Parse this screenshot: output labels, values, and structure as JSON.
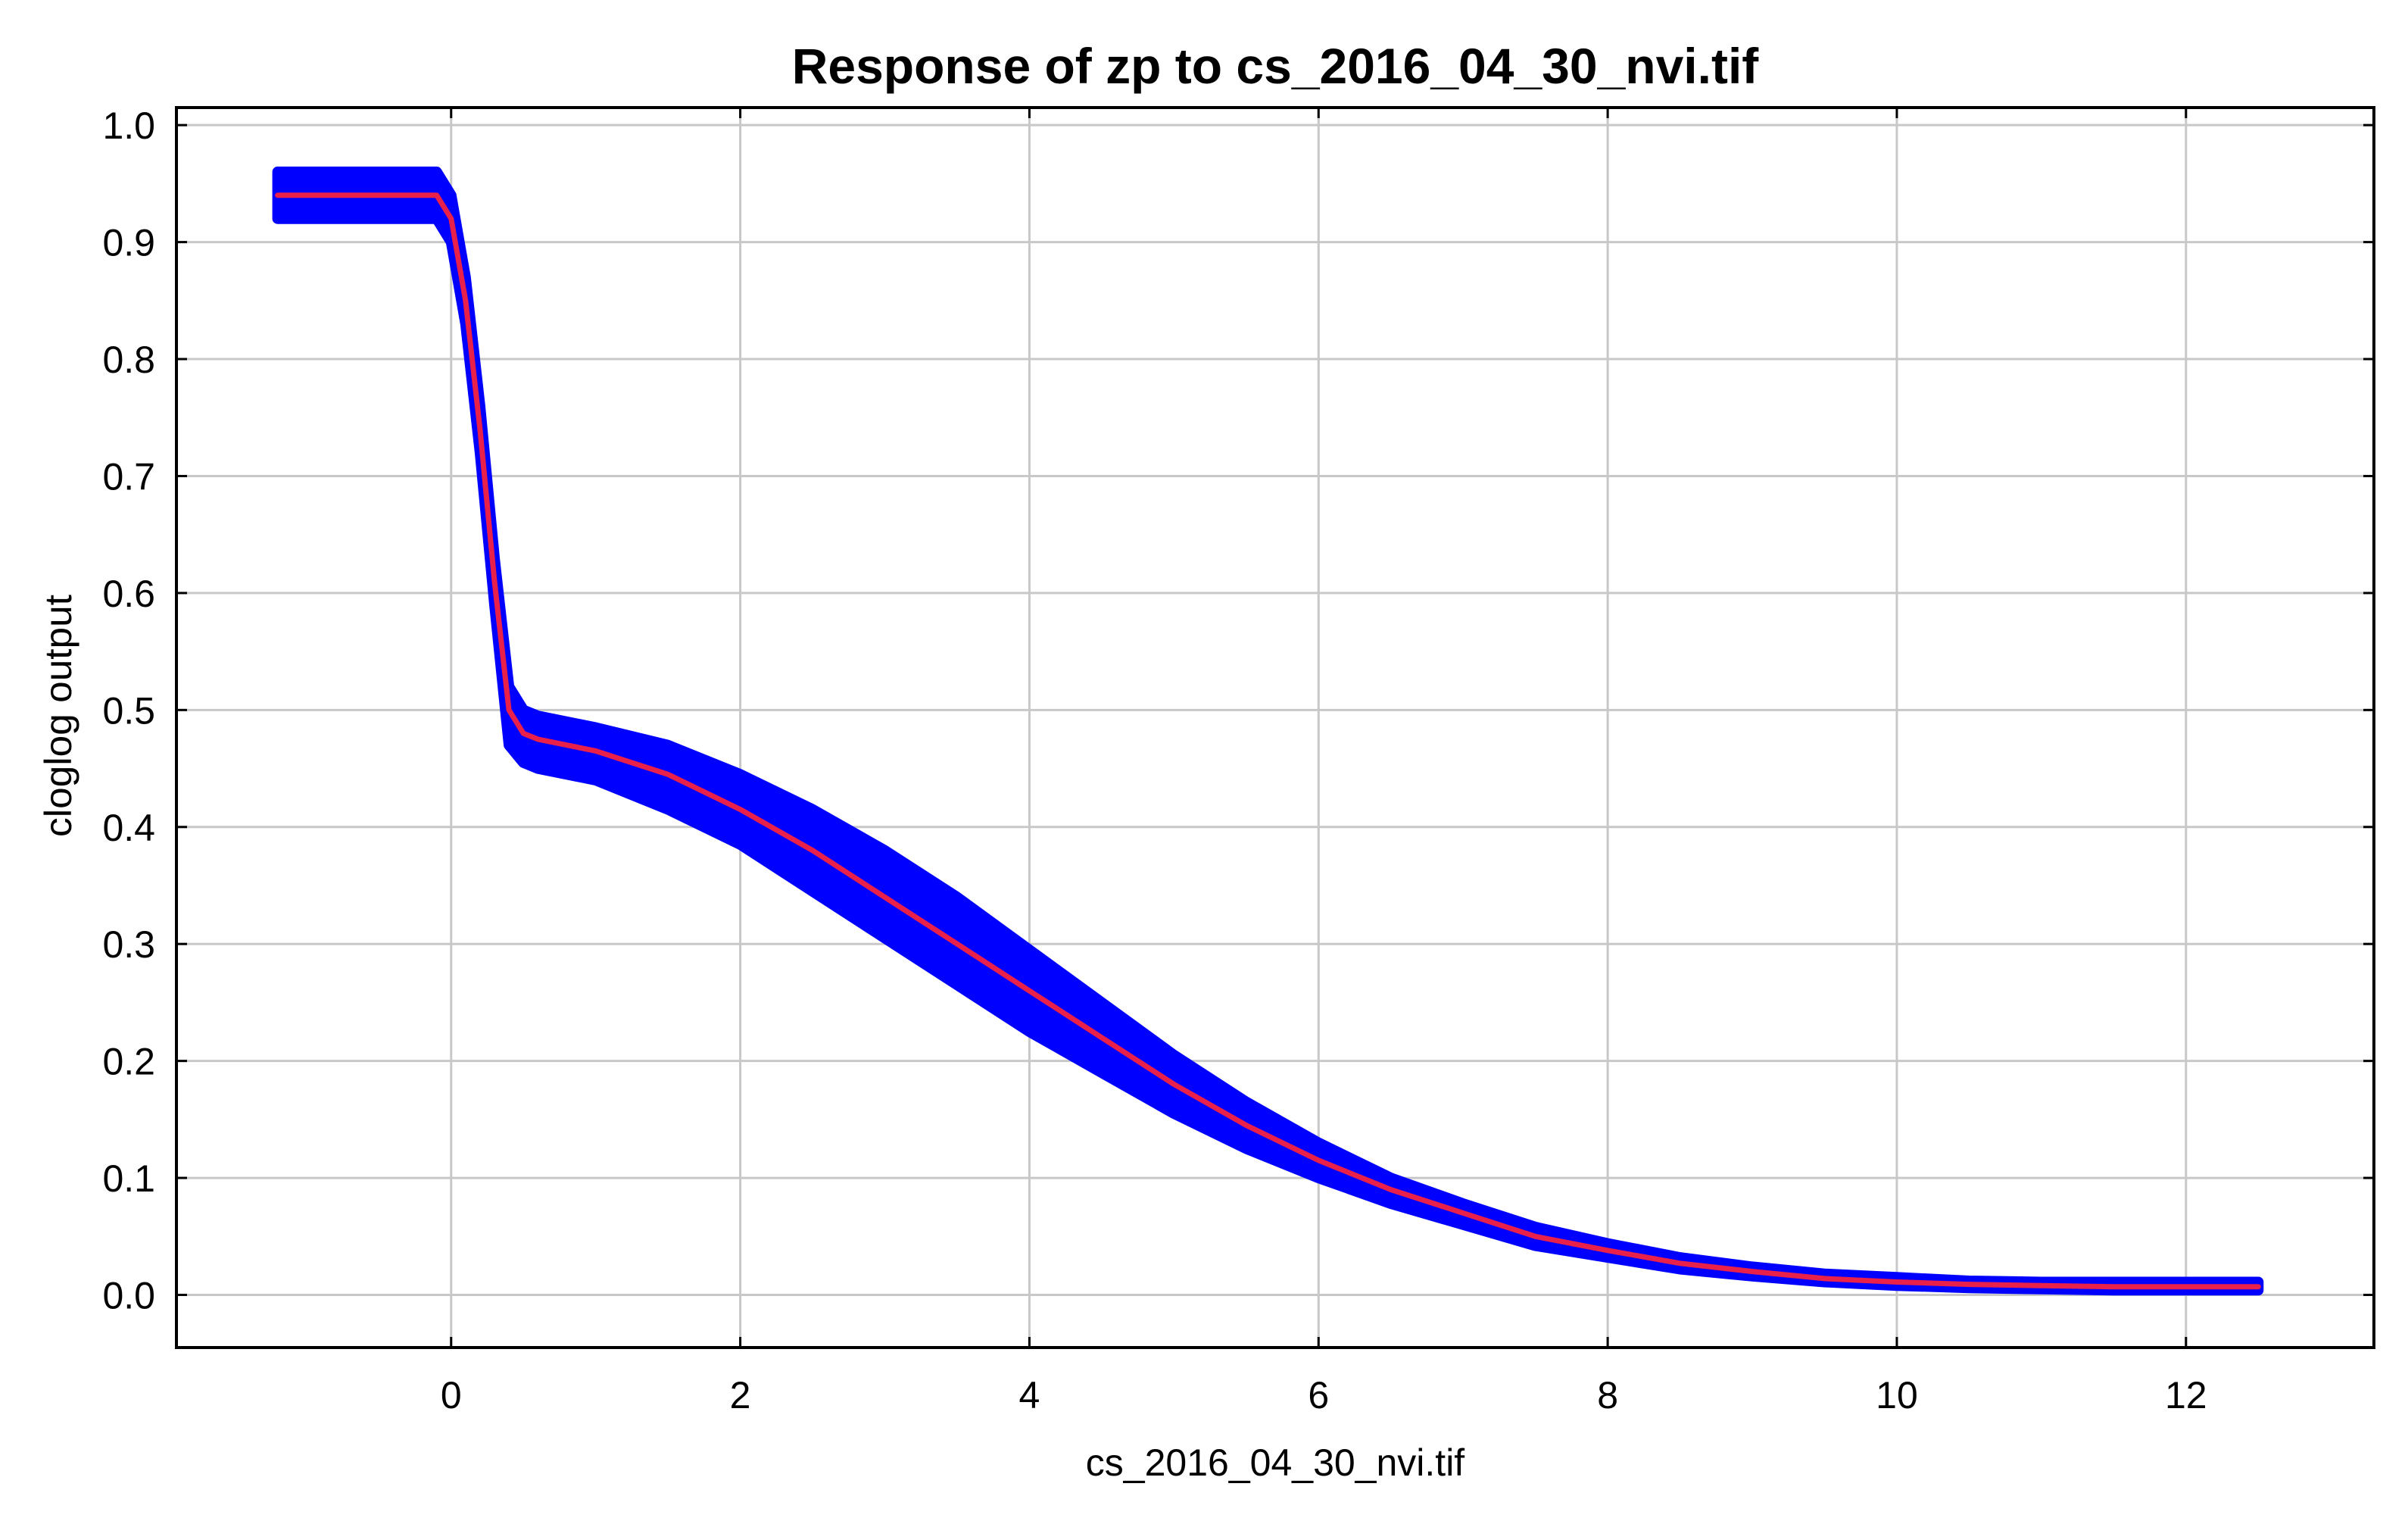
{
  "chart_data": {
    "type": "line",
    "title": "Response of zp to cs_2016_04_30_nvi.tif",
    "xlabel": "cs_2016_04_30_nvi.tif",
    "ylabel": "cloglog output",
    "xlim": [
      -1.9,
      13.3
    ],
    "ylim": [
      -0.045,
      1.015
    ],
    "xticks": [
      0,
      2,
      4,
      6,
      8,
      10,
      12
    ],
    "xtick_labels": [
      "0",
      "2",
      "4",
      "6",
      "8",
      "10",
      "12"
    ],
    "yticks": [
      0.0,
      0.1,
      0.2,
      0.3,
      0.4,
      0.5,
      0.6,
      0.7,
      0.8,
      0.9,
      1.0
    ],
    "ytick_labels": [
      "0.0",
      "0.1",
      "0.2",
      "0.3",
      "0.4",
      "0.5",
      "0.6",
      "0.7",
      "0.8",
      "0.9",
      "1.0"
    ],
    "grid": true,
    "legend": "none",
    "colors": {
      "mean_line": "#e8204a",
      "band": "#0000ff",
      "grid": "#c8c8c8",
      "frame": "#000000"
    },
    "series": [
      {
        "role": "mean",
        "x": [
          -1.2,
          -0.1,
          0.0,
          0.1,
          0.2,
          0.3,
          0.4,
          0.5,
          0.6,
          1.0,
          1.5,
          2.0,
          2.5,
          3.0,
          3.5,
          4.0,
          4.5,
          5.0,
          5.5,
          6.0,
          6.5,
          7.0,
          7.5,
          8.0,
          8.5,
          9.0,
          9.5,
          10.0,
          10.5,
          11.0,
          11.5,
          12.0,
          12.5
        ],
        "y": [
          0.94,
          0.94,
          0.92,
          0.85,
          0.74,
          0.61,
          0.5,
          0.48,
          0.475,
          0.465,
          0.445,
          0.415,
          0.38,
          0.34,
          0.3,
          0.26,
          0.22,
          0.18,
          0.145,
          0.115,
          0.09,
          0.07,
          0.05,
          0.038,
          0.027,
          0.02,
          0.014,
          0.011,
          0.009,
          0.008,
          0.007,
          0.007,
          0.007
        ]
      },
      {
        "role": "band_upper",
        "x": [
          -1.2,
          -0.1,
          0.0,
          0.1,
          0.2,
          0.3,
          0.4,
          0.5,
          0.6,
          1.0,
          1.5,
          2.0,
          2.5,
          3.0,
          3.5,
          4.0,
          4.5,
          5.0,
          5.5,
          6.0,
          6.5,
          7.0,
          7.5,
          8.0,
          8.5,
          9.0,
          9.5,
          10.0,
          10.5,
          11.0,
          11.5,
          12.0,
          12.5
        ],
        "y": [
          0.96,
          0.96,
          0.94,
          0.87,
          0.76,
          0.63,
          0.52,
          0.5,
          0.495,
          0.485,
          0.47,
          0.445,
          0.415,
          0.38,
          0.34,
          0.295,
          0.25,
          0.205,
          0.165,
          0.13,
          0.1,
          0.078,
          0.058,
          0.044,
          0.032,
          0.024,
          0.018,
          0.015,
          0.012,
          0.011,
          0.011,
          0.011,
          0.011
        ]
      },
      {
        "role": "band_lower",
        "x": [
          -1.2,
          -0.1,
          0.0,
          0.1,
          0.2,
          0.3,
          0.4,
          0.5,
          0.6,
          1.0,
          1.5,
          2.0,
          2.5,
          3.0,
          3.5,
          4.0,
          4.5,
          5.0,
          5.5,
          6.0,
          6.5,
          7.0,
          7.5,
          8.0,
          8.5,
          9.0,
          9.5,
          10.0,
          10.5,
          11.0,
          11.5,
          12.0,
          12.5
        ],
        "y": [
          0.92,
          0.92,
          0.9,
          0.83,
          0.72,
          0.59,
          0.47,
          0.455,
          0.45,
          0.44,
          0.415,
          0.385,
          0.345,
          0.305,
          0.265,
          0.225,
          0.19,
          0.155,
          0.125,
          0.1,
          0.078,
          0.06,
          0.042,
          0.032,
          0.022,
          0.016,
          0.011,
          0.008,
          0.006,
          0.005,
          0.004,
          0.004,
          0.004
        ]
      }
    ]
  }
}
